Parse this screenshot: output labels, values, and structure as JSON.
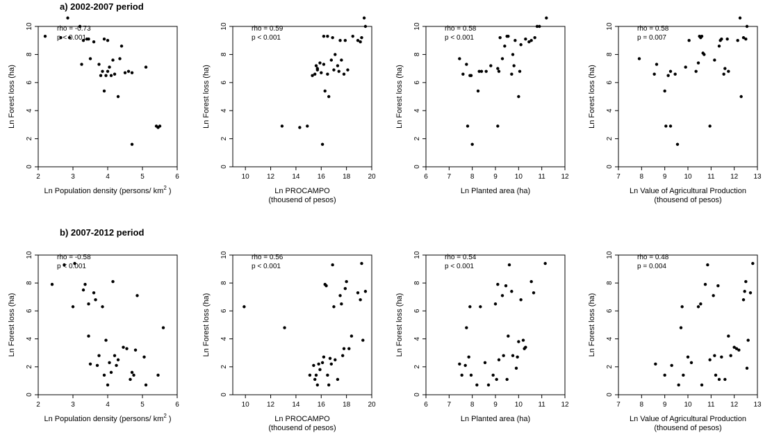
{
  "row_titles": [
    "a) 2002-2007 period",
    "b) 2007-2012 period"
  ],
  "ylabel": "Ln Forest loss (ha)",
  "chart_data": [
    {
      "type": "scatter",
      "row": 0,
      "col": 0,
      "xlabel": "Ln Population density (persons/ km",
      "xlabel_sup": "2",
      "xlabel_tail": " )",
      "xlabel2": "",
      "ylabel": "Ln Forest loss (ha)",
      "xlim": [
        2,
        6
      ],
      "ylim": [
        0,
        10
      ],
      "xticks": [
        2,
        3,
        4,
        5,
        6
      ],
      "yticks": [
        0,
        2,
        4,
        6,
        8,
        10
      ],
      "rho_label": "rho =",
      "rho": "-0.73",
      "p": "p < 0.001",
      "x": [
        2.2,
        2.65,
        2.85,
        2.9,
        3.2,
        3.25,
        3.3,
        3.4,
        3.45,
        3.5,
        3.6,
        3.75,
        3.8,
        3.85,
        3.9,
        3.9,
        3.95,
        4.0,
        4.0,
        4.05,
        4.1,
        4.15,
        4.2,
        4.3,
        4.35,
        4.4,
        4.5,
        4.6,
        4.7,
        4.7,
        5.1,
        5.4,
        5.45,
        5.5
      ],
      "y": [
        9.3,
        9.2,
        10.6,
        9.2,
        10.0,
        7.3,
        9.0,
        9.1,
        9.1,
        7.7,
        8.9,
        7.3,
        6.5,
        6.8,
        9.1,
        5.4,
        6.5,
        6.8,
        9.0,
        7.1,
        6.5,
        7.6,
        6.6,
        5.0,
        7.7,
        8.6,
        6.7,
        6.8,
        1.6,
        6.7,
        7.1,
        2.9,
        2.8,
        2.9
      ]
    },
    {
      "type": "scatter",
      "row": 0,
      "col": 1,
      "xlabel": "Ln PROCAMPO",
      "xlabel2": "(thousend of pesos)",
      "ylabel": "Ln Forest loss (ha)",
      "xlim": [
        9,
        20
      ],
      "ylim": [
        0,
        10
      ],
      "xticks": [
        10,
        12,
        14,
        16,
        18,
        20
      ],
      "yticks": [
        0,
        2,
        4,
        6,
        8,
        10
      ],
      "rho_label": "rho =",
      "rho": "0.59",
      "p": "p < 0.001",
      "x": [
        12.9,
        14.3,
        14.9,
        15.3,
        15.5,
        15.6,
        15.7,
        15.7,
        15.9,
        16.0,
        16.1,
        16.2,
        16.2,
        16.3,
        16.5,
        16.5,
        16.6,
        16.8,
        16.9,
        17.0,
        17.1,
        17.3,
        17.4,
        17.5,
        17.6,
        17.8,
        17.9,
        18.1,
        18.5,
        18.9,
        19.1,
        19.2,
        19.4,
        19.5
      ],
      "y": [
        2.9,
        2.8,
        2.9,
        6.5,
        6.6,
        7.2,
        6.9,
        7.0,
        7.4,
        6.7,
        1.6,
        7.3,
        9.3,
        5.4,
        6.6,
        9.3,
        5.0,
        7.6,
        9.2,
        6.9,
        8.0,
        7.2,
        6.8,
        9.0,
        7.6,
        6.6,
        9.0,
        6.9,
        9.3,
        9.0,
        8.9,
        9.2,
        10.6,
        10.0
      ]
    },
    {
      "type": "scatter",
      "row": 0,
      "col": 2,
      "xlabel": "Ln Planted area (ha)",
      "xlabel2": "",
      "ylabel": "Ln Forest loss (ha)",
      "xlim": [
        6,
        12
      ],
      "ylim": [
        0,
        10
      ],
      "xticks": [
        6,
        7,
        8,
        9,
        10,
        11,
        12
      ],
      "yticks": [
        0,
        2,
        4,
        6,
        8,
        10
      ],
      "rho_label": "rho =",
      "rho": "0.58",
      "p": "p < 0.001",
      "x": [
        7.45,
        7.6,
        7.75,
        7.8,
        7.9,
        7.95,
        8.0,
        8.25,
        8.3,
        8.4,
        8.6,
        8.8,
        9.1,
        9.1,
        9.15,
        9.2,
        9.3,
        9.4,
        9.5,
        9.55,
        9.7,
        9.75,
        9.8,
        9.85,
        10.0,
        10.05,
        10.1,
        10.3,
        10.45,
        10.55,
        10.7,
        10.8,
        10.9,
        11.2
      ],
      "y": [
        7.7,
        6.6,
        7.3,
        2.9,
        6.5,
        6.5,
        1.6,
        5.4,
        6.8,
        6.8,
        6.8,
        7.2,
        2.9,
        7.0,
        6.8,
        9.2,
        7.7,
        8.6,
        9.3,
        9.3,
        6.6,
        8.0,
        7.2,
        9.0,
        5.0,
        6.8,
        8.7,
        9.1,
        8.9,
        9.0,
        9.2,
        10.0,
        10.0,
        10.6
      ]
    },
    {
      "type": "scatter",
      "row": 0,
      "col": 3,
      "xlabel": "Ln Value of Agricultural Production",
      "xlabel2": "(thousend of pesos)",
      "ylabel": "Ln Forest loss (ha)",
      "xlim": [
        7,
        13
      ],
      "ylim": [
        0,
        10
      ],
      "xticks": [
        7,
        8,
        9,
        10,
        11,
        12,
        13
      ],
      "yticks": [
        0,
        2,
        4,
        6,
        8,
        10
      ],
      "rho_label": "rho =",
      "rho": "0.58",
      "p": "p = 0.007",
      "x": [
        7.9,
        8.55,
        8.65,
        9.0,
        9.05,
        9.15,
        9.25,
        9.25,
        9.45,
        9.55,
        9.9,
        10.05,
        10.35,
        10.45,
        10.5,
        10.55,
        10.6,
        10.65,
        10.7,
        10.95,
        11.15,
        11.35,
        11.4,
        11.45,
        11.55,
        11.6,
        11.7,
        11.75,
        12.15,
        12.25,
        12.3,
        12.4,
        12.5,
        12.55
      ],
      "y": [
        7.7,
        6.6,
        7.3,
        5.4,
        2.9,
        6.5,
        2.9,
        6.8,
        6.6,
        1.6,
        7.1,
        9.0,
        6.8,
        7.4,
        9.3,
        9.2,
        9.3,
        8.1,
        8.0,
        2.9,
        7.6,
        8.6,
        9.0,
        9.1,
        6.6,
        7.0,
        9.1,
        6.8,
        9.0,
        10.6,
        5.0,
        9.2,
        9.1,
        10.0
      ]
    },
    {
      "type": "scatter",
      "row": 1,
      "col": 0,
      "xlabel": "Ln Population density (persons/ km",
      "xlabel_sup": "2",
      "xlabel_tail": " )",
      "xlabel2": "",
      "ylabel": "Ln Forest loss (ha)",
      "xlim": [
        2,
        6
      ],
      "ylim": [
        0,
        10
      ],
      "xticks": [
        2,
        3,
        4,
        5,
        6
      ],
      "yticks": [
        0,
        2,
        4,
        6,
        8,
        10
      ],
      "rho_label": "rho =",
      "rho": "-0.58",
      "p": "p < 0.001",
      "x": [
        2.4,
        2.75,
        3.0,
        3.05,
        3.3,
        3.35,
        3.45,
        3.45,
        3.5,
        3.6,
        3.65,
        3.7,
        3.75,
        3.85,
        3.9,
        3.95,
        4.0,
        4.05,
        4.1,
        4.15,
        4.2,
        4.25,
        4.3,
        4.45,
        4.55,
        4.65,
        4.7,
        4.75,
        4.8,
        4.85,
        5.05,
        5.1,
        5.45,
        5.6
      ],
      "y": [
        7.9,
        9.3,
        6.3,
        9.4,
        7.5,
        7.9,
        4.2,
        6.5,
        2.2,
        7.3,
        6.8,
        2.1,
        2.8,
        6.3,
        1.4,
        3.9,
        0.7,
        2.3,
        1.6,
        8.1,
        2.8,
        2.1,
        2.5,
        3.4,
        3.3,
        1.1,
        1.6,
        1.4,
        3.2,
        7.1,
        2.7,
        0.7,
        1.4,
        4.8
      ]
    },
    {
      "type": "scatter",
      "row": 1,
      "col": 1,
      "xlabel": "Ln PROCAMPO",
      "xlabel2": "(thousend of pesos)",
      "ylabel": "Ln Forest loss (ha)",
      "xlim": [
        9,
        20
      ],
      "ylim": [
        0,
        10
      ],
      "xticks": [
        10,
        12,
        14,
        16,
        18,
        20
      ],
      "yticks": [
        0,
        2,
        4,
        6,
        8,
        10
      ],
      "rho_label": "rho =",
      "rho": "0.56",
      "p": "p < 0.001",
      "x": [
        9.9,
        13.1,
        15.1,
        15.4,
        15.5,
        15.6,
        15.7,
        15.8,
        15.9,
        16.1,
        16.2,
        16.3,
        16.4,
        16.5,
        16.6,
        16.7,
        16.8,
        16.9,
        17.0,
        17.1,
        17.3,
        17.5,
        17.6,
        17.7,
        17.8,
        17.9,
        18.0,
        18.2,
        18.4,
        18.9,
        19.1,
        19.2,
        19.3,
        19.5
      ],
      "y": [
        6.3,
        4.8,
        1.4,
        2.1,
        1.1,
        1.4,
        0.7,
        2.2,
        1.8,
        2.3,
        2.7,
        7.9,
        7.8,
        1.4,
        0.7,
        2.6,
        2.2,
        9.3,
        6.3,
        2.5,
        1.1,
        7.1,
        6.5,
        2.8,
        3.3,
        7.6,
        8.1,
        3.3,
        4.2,
        7.3,
        6.8,
        9.4,
        3.9,
        7.4
      ]
    },
    {
      "type": "scatter",
      "row": 1,
      "col": 2,
      "xlabel": "Ln Planted area (ha)",
      "xlabel2": "",
      "ylabel": "Ln Forest loss (ha)",
      "xlim": [
        6,
        12
      ],
      "ylim": [
        0,
        10
      ],
      "xticks": [
        6,
        7,
        8,
        9,
        10,
        11,
        12
      ],
      "yticks": [
        0,
        2,
        4,
        6,
        8,
        10
      ],
      "rho_label": "rho =",
      "rho": "0.54",
      "p": "p < 0.001",
      "x": [
        7.45,
        7.55,
        7.7,
        7.75,
        7.85,
        7.9,
        7.95,
        8.2,
        8.35,
        8.55,
        8.7,
        8.9,
        9.0,
        9.05,
        9.1,
        9.15,
        9.3,
        9.35,
        9.45,
        9.5,
        9.55,
        9.6,
        9.7,
        9.75,
        9.9,
        9.95,
        10.0,
        10.1,
        10.2,
        10.25,
        10.3,
        10.55,
        10.65,
        11.15
      ],
      "y": [
        2.2,
        1.4,
        2.1,
        4.8,
        2.7,
        6.3,
        1.4,
        0.7,
        6.3,
        2.3,
        0.7,
        1.4,
        6.5,
        1.1,
        7.9,
        2.5,
        7.1,
        2.8,
        7.8,
        1.1,
        4.2,
        9.3,
        7.4,
        2.8,
        1.9,
        2.7,
        3.8,
        6.8,
        3.9,
        3.3,
        3.4,
        8.1,
        7.3,
        9.4
      ]
    },
    {
      "type": "scatter",
      "row": 1,
      "col": 3,
      "xlabel": "Ln Value of Agricultural Production",
      "xlabel2": "(thousend of pesos)",
      "ylabel": "Ln Forest loss (ha)",
      "xlim": [
        7,
        13
      ],
      "ylim": [
        0,
        10
      ],
      "xticks": [
        7,
        8,
        9,
        10,
        11,
        12,
        13
      ],
      "yticks": [
        0,
        2,
        4,
        6,
        8,
        10
      ],
      "rho_label": "rho =",
      "rho": "0.48",
      "p": "p = 0.004",
      "x": [
        8.6,
        9.0,
        9.3,
        9.6,
        9.7,
        9.75,
        9.8,
        10.0,
        10.15,
        10.45,
        10.55,
        10.6,
        10.75,
        10.85,
        10.95,
        11.1,
        11.15,
        11.2,
        11.3,
        11.35,
        11.45,
        11.6,
        11.75,
        11.85,
        12.0,
        12.1,
        12.2,
        12.4,
        12.45,
        12.5,
        12.55,
        12.6,
        12.7,
        12.8
      ],
      "y": [
        2.2,
        1.4,
        2.1,
        0.7,
        4.8,
        6.3,
        1.4,
        2.7,
        2.3,
        6.3,
        6.5,
        0.7,
        7.9,
        9.3,
        2.5,
        7.1,
        2.8,
        1.4,
        7.8,
        1.1,
        2.7,
        1.1,
        4.2,
        2.8,
        3.4,
        3.3,
        3.2,
        6.8,
        7.4,
        8.1,
        1.9,
        3.9,
        7.3,
        9.4
      ]
    }
  ]
}
